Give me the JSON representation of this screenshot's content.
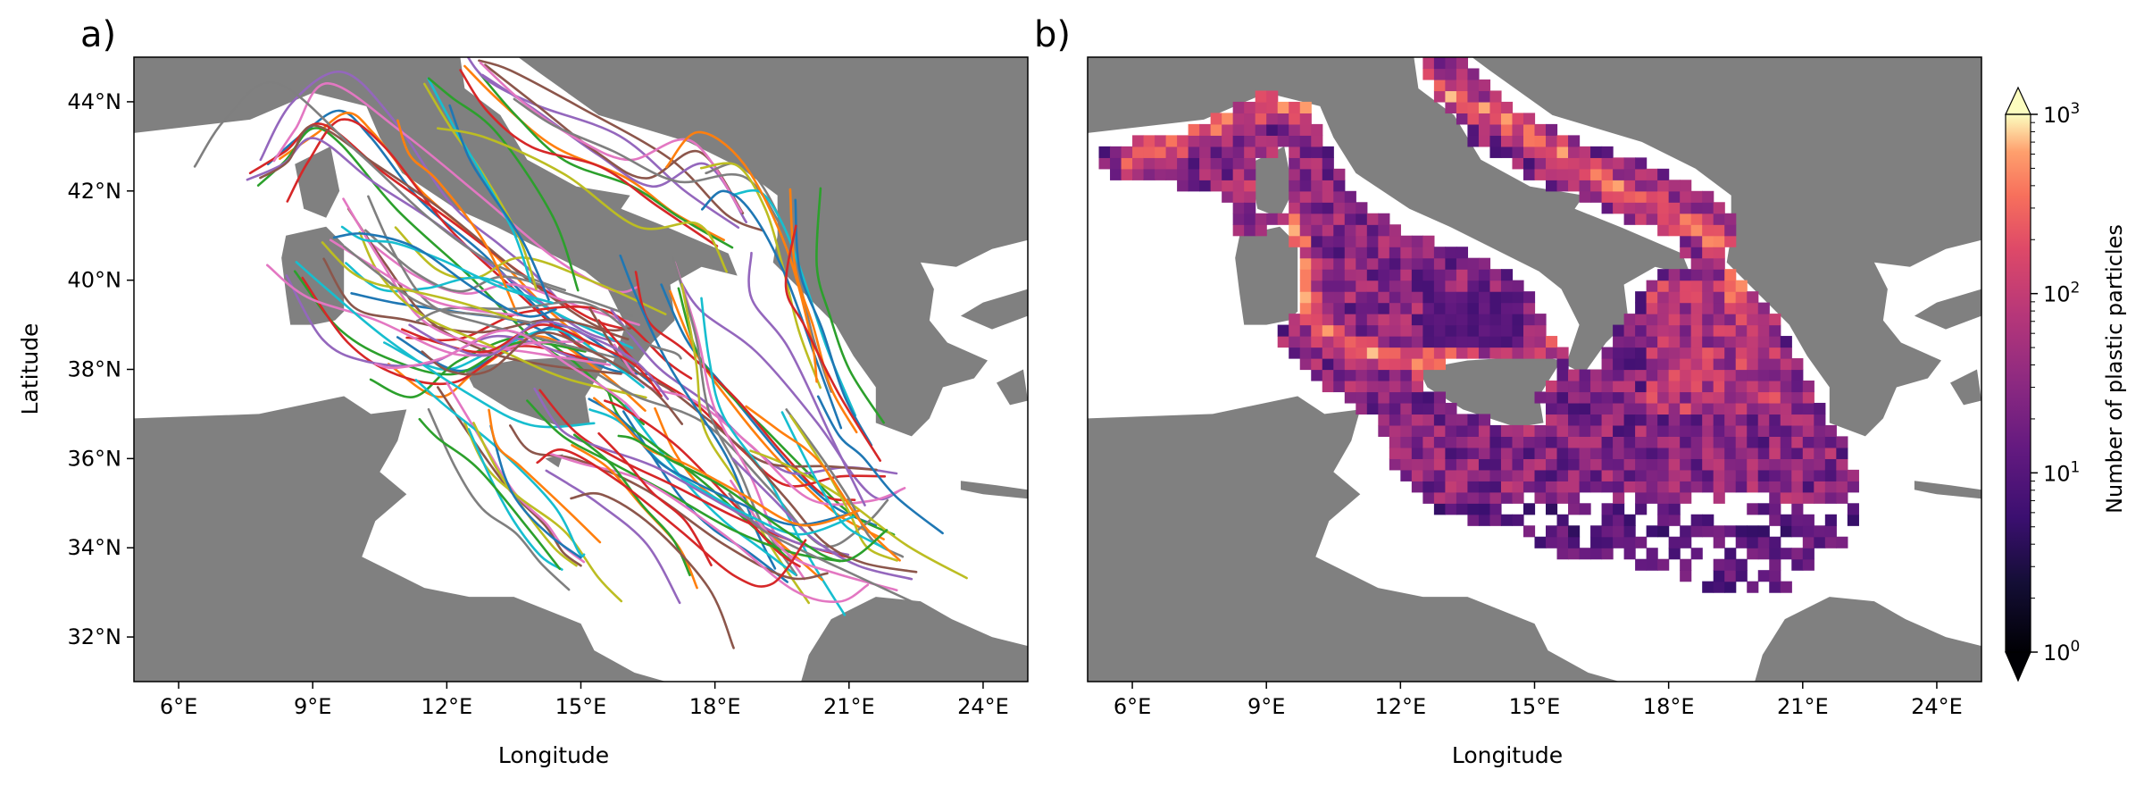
{
  "chart_data": [
    {
      "panel": "a)",
      "type": "line",
      "title": "",
      "xlabel": "Longitude",
      "ylabel": "Latitude",
      "xlim": [
        5,
        25
      ],
      "ylim": [
        31,
        45
      ],
      "xticks": [
        "6°E",
        "9°E",
        "12°E",
        "15°E",
        "18°E",
        "21°E",
        "24°E"
      ],
      "xtick_values": [
        6,
        9,
        12,
        15,
        18,
        21,
        24
      ],
      "yticks": [
        "32°N",
        "34°N",
        "36°N",
        "38°N",
        "40°N",
        "42°N",
        "44°N"
      ],
      "ytick_values": [
        32,
        34,
        36,
        38,
        40,
        42,
        44
      ],
      "land_color": "#808080",
      "series_colors": [
        "#1f77b4",
        "#ff7f0e",
        "#2ca02c",
        "#d62728",
        "#9467bd",
        "#8c564b",
        "#e377c2",
        "#7f7f7f",
        "#bcbd22",
        "#17becf"
      ],
      "series": [
        {
          "x": [
            8.0,
            8.8,
            9.6,
            10.3,
            11.4,
            12.8,
            14.0,
            14.9
          ],
          "y": [
            42.6,
            43.3,
            43.8,
            43.2,
            41.8,
            40.6,
            39.4,
            38.6
          ]
        },
        {
          "x": [
            7.6,
            8.4,
            9.2,
            10.6,
            12.0,
            13.6,
            15.1,
            16.0
          ],
          "y": [
            42.4,
            42.9,
            43.5,
            42.4,
            41.4,
            40.2,
            39.2,
            38.9
          ]
        },
        {
          "x": [
            10.2,
            11.3,
            12.4,
            13.5,
            15.0,
            16.3
          ],
          "y": [
            40.9,
            40.1,
            39.7,
            39.9,
            39.4,
            39.0
          ]
        },
        {
          "x": [
            10.6,
            11.9,
            13.0,
            14.4,
            15.6,
            16.4
          ],
          "y": [
            38.6,
            38.0,
            38.4,
            38.9,
            38.2,
            37.6
          ]
        },
        {
          "x": [
            8.6,
            9.6,
            10.8,
            12.2,
            13.6,
            15.1
          ],
          "y": [
            40.2,
            38.9,
            38.2,
            37.9,
            38.6,
            38.4
          ]
        },
        {
          "x": [
            9.8,
            10.6,
            11.6,
            12.9,
            14.2,
            15.9
          ],
          "y": [
            41.6,
            40.4,
            39.1,
            38.4,
            38.1,
            37.9
          ]
        },
        {
          "x": [
            11.5,
            12.1,
            12.8,
            13.6,
            14.0
          ],
          "y": [
            44.4,
            43.4,
            42.4,
            41.0,
            39.8
          ]
        },
        {
          "x": [
            12.4,
            13.2,
            14.4,
            16.0,
            17.1,
            18.2
          ],
          "y": [
            44.8,
            44.0,
            43.0,
            42.3,
            41.5,
            40.9
          ]
        },
        {
          "x": [
            12.8,
            14.0,
            15.4,
            16.6,
            17.8,
            18.7
          ],
          "y": [
            44.6,
            43.8,
            42.8,
            42.1,
            42.6,
            41.3
          ]
        },
        {
          "x": [
            17.8,
            18.6,
            19.3,
            19.8,
            20.2,
            20.6
          ],
          "y": [
            42.4,
            42.6,
            41.7,
            40.3,
            38.7,
            37.5
          ]
        },
        {
          "x": [
            16.8,
            17.4,
            18.3,
            19.2,
            19.9,
            20.7,
            21.6
          ],
          "y": [
            39.9,
            38.6,
            37.5,
            36.4,
            35.6,
            34.9,
            34.5
          ]
        },
        {
          "x": [
            15.4,
            16.4,
            17.6,
            18.6,
            19.6,
            20.8,
            21.8
          ],
          "y": [
            39.1,
            38.0,
            37.2,
            36.2,
            35.4,
            35.6,
            35.6
          ]
        },
        {
          "x": [
            17.1,
            17.6,
            18.0,
            18.8,
            19.3,
            20.0
          ],
          "y": [
            40.4,
            38.8,
            37.1,
            35.6,
            34.4,
            33.3
          ]
        },
        {
          "x": [
            16.0,
            16.6,
            17.4,
            18.2,
            19.0,
            19.8
          ],
          "y": [
            37.2,
            36.4,
            35.4,
            34.6,
            34.0,
            33.4
          ]
        },
        {
          "x": [
            13.8,
            14.6,
            15.7,
            17.0,
            18.4,
            19.7,
            20.8
          ],
          "y": [
            37.3,
            36.5,
            35.9,
            35.2,
            34.4,
            33.9,
            33.7
          ]
        },
        {
          "x": [
            11.8,
            12.6,
            13.4,
            14.2,
            14.6,
            15.0
          ],
          "y": [
            37.6,
            36.4,
            35.3,
            34.5,
            33.9,
            33.6
          ]
        },
        {
          "x": [
            12.6,
            13.1,
            13.7,
            14.4,
            14.9
          ],
          "y": [
            36.8,
            35.8,
            34.9,
            34.0,
            33.6
          ]
        },
        {
          "x": [
            14.8,
            15.6,
            16.4,
            17.2,
            17.6
          ],
          "y": [
            36.3,
            35.8,
            34.9,
            34.0,
            33.1
          ]
        },
        {
          "x": [
            18.4,
            19.3,
            20.2,
            21.2,
            22.4
          ],
          "y": [
            36.0,
            35.1,
            34.2,
            33.6,
            33.3
          ]
        },
        {
          "x": [
            19.6,
            20.4,
            21.0,
            21.5,
            22.2
          ],
          "y": [
            37.1,
            36.0,
            35.1,
            34.2,
            33.8
          ]
        },
        {
          "x": [
            19.8,
            19.9,
            20.4,
            20.9,
            21.5
          ],
          "y": [
            41.8,
            40.2,
            38.9,
            37.4,
            36.3
          ]
        },
        {
          "x": [
            11.0,
            11.8,
            12.9,
            14.1,
            15.2,
            16.2,
            16.8
          ],
          "y": [
            38.9,
            38.6,
            38.4,
            39.0,
            38.6,
            38.1,
            37.4
          ]
        },
        {
          "x": [
            9.4,
            10.2,
            11.0,
            11.8,
            12.8,
            13.8
          ],
          "y": [
            40.9,
            40.4,
            39.9,
            39.5,
            39.3,
            39.2
          ]
        },
        {
          "x": [
            15.2,
            15.9,
            16.8,
            17.7,
            18.8,
            19.9,
            21.1
          ],
          "y": [
            37.1,
            36.8,
            35.9,
            35.3,
            34.7,
            34.3,
            34.7
          ]
        }
      ]
    },
    {
      "panel": "b)",
      "type": "heatmap",
      "title": "",
      "xlabel": "Longitude",
      "ylabel": "",
      "xlim": [
        5,
        25
      ],
      "ylim": [
        31,
        45
      ],
      "xticks": [
        "6°E",
        "9°E",
        "12°E",
        "15°E",
        "18°E",
        "21°E",
        "24°E"
      ],
      "xtick_values": [
        6,
        9,
        12,
        15,
        18,
        21,
        24
      ],
      "land_color": "#808080",
      "colorscale": "magma",
      "scale": "log",
      "colorbar": {
        "label": "Number of plastic particles",
        "range": [
          1,
          1000
        ],
        "extend": "both",
        "tick_labels": [
          {
            "base": "10",
            "exp": "0"
          },
          {
            "base": "10",
            "exp": "1"
          },
          {
            "base": "10",
            "exp": "2"
          },
          {
            "base": "10",
            "exp": "3"
          }
        ],
        "tick_values": [
          1,
          10,
          100,
          1000
        ]
      }
    }
  ]
}
